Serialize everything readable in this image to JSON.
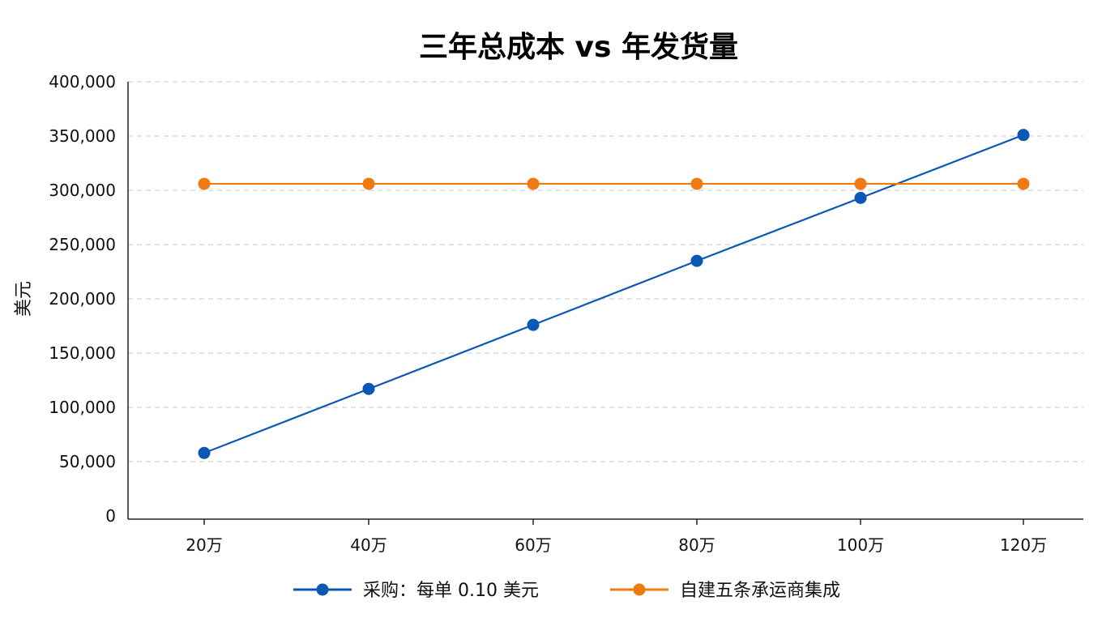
{
  "chart_data": {
    "type": "line",
    "title": "三年总成本 vs 年发货量",
    "xlabel": "",
    "ylabel": "美元",
    "categories": [
      "20万",
      "40万",
      "60万",
      "80万",
      "100万",
      "120万"
    ],
    "yticks": [
      "0",
      "50,000",
      "100,000",
      "150,000",
      "200,000",
      "250,000",
      "300,000",
      "350,000",
      "400,000"
    ],
    "ylim": [
      0,
      400000
    ],
    "grid": true,
    "legend_position": "bottom",
    "series": [
      {
        "name": "采购：每单 0.10 美元",
        "color": "#0b57b5",
        "values": [
          58000,
          117000,
          176000,
          235000,
          293000,
          351000
        ]
      },
      {
        "name": "自建五条承运商集成",
        "color": "#f07a12",
        "values": [
          306000,
          306000,
          306000,
          306000,
          306000,
          306000
        ]
      }
    ]
  }
}
